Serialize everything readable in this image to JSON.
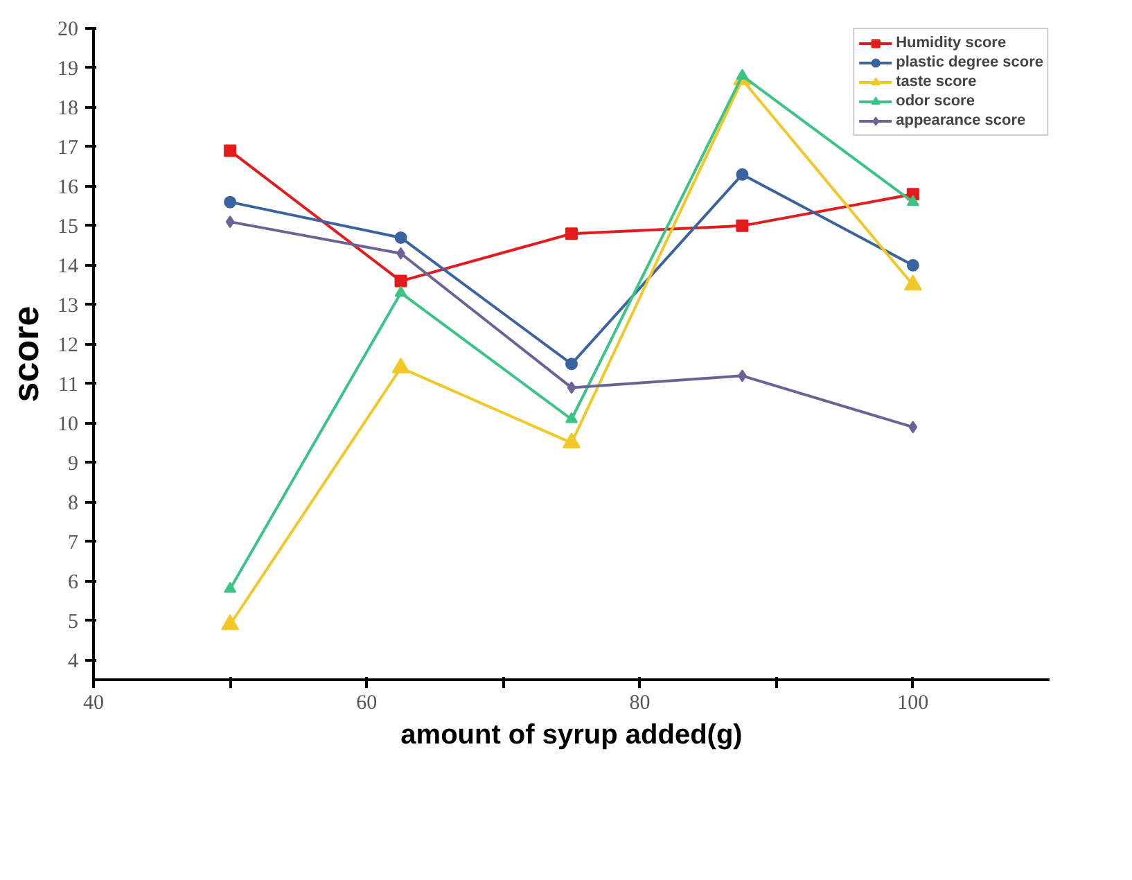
{
  "chart_data": {
    "type": "line",
    "xlabel": "amount of syrup added(g)",
    "ylabel": "score",
    "x": [
      50,
      62.5,
      75,
      87.5,
      100
    ],
    "series": [
      {
        "name": "Humidity score",
        "color": "#e41a1c",
        "marker": "square",
        "values": [
          16.9,
          13.6,
          14.8,
          15.0,
          15.8
        ]
      },
      {
        "name": "plastic degree score",
        "color": "#3a64a0",
        "marker": "circle",
        "values": [
          15.6,
          14.7,
          11.5,
          16.3,
          14.0
        ]
      },
      {
        "name": "taste score",
        "color": "#f0c929",
        "marker": "triangle",
        "values": [
          4.9,
          11.4,
          9.5,
          18.7,
          13.5
        ]
      },
      {
        "name": "odor score",
        "color": "#3cc486",
        "marker": "triangle",
        "values": [
          5.8,
          13.3,
          10.1,
          18.8,
          15.6
        ]
      },
      {
        "name": "appearance score",
        "color": "#6a6496",
        "marker": "diamond",
        "values": [
          15.1,
          14.3,
          10.9,
          11.2,
          9.9
        ]
      }
    ],
    "xlim": [
      40,
      110
    ],
    "xticks": [
      40,
      {
        "value": 50,
        "label": null
      },
      60,
      {
        "value": 70,
        "label": null
      },
      80,
      {
        "value": 90,
        "label": null
      },
      100
    ],
    "ylim": [
      3.5,
      20
    ],
    "yticks": [
      4,
      5,
      6,
      7,
      8,
      9,
      10,
      11,
      12,
      13,
      14,
      15,
      16,
      17,
      18,
      19,
      20
    ],
    "grid": false,
    "legend": "top right",
    "line_style": "solid"
  }
}
